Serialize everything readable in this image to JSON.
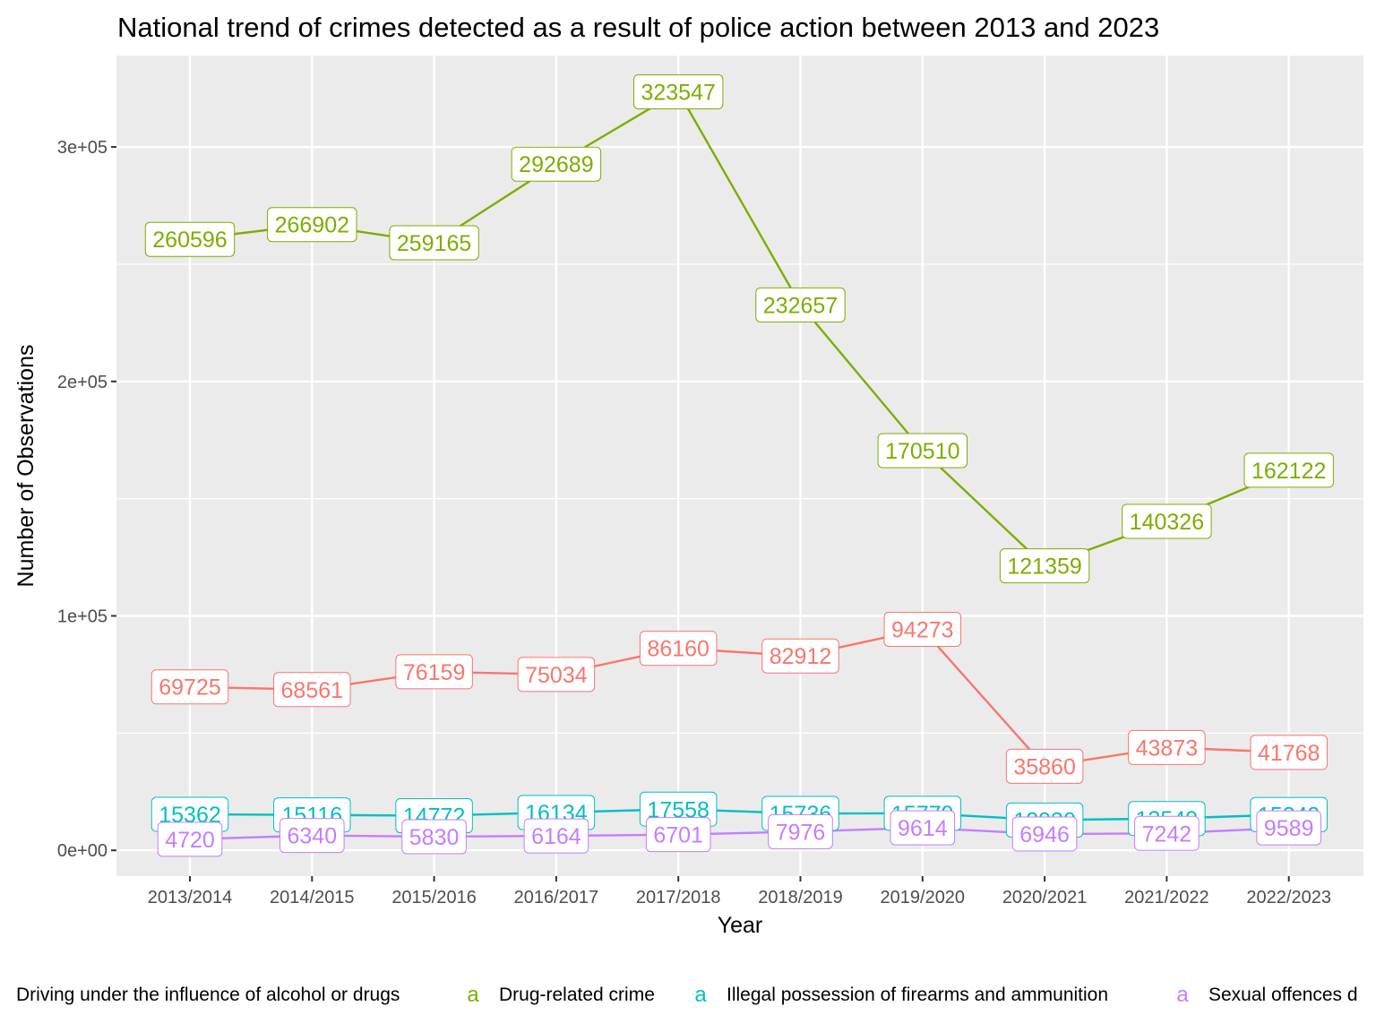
{
  "chart_data": {
    "type": "line",
    "title": "National trend of crimes detected as a result of police action between 2013 and 2023",
    "xlabel": "Year",
    "ylabel": "Number of Observations",
    "categories": [
      "2013/2014",
      "2014/2015",
      "2015/2016",
      "2016/2017",
      "2017/2018",
      "2018/2019",
      "2019/2020",
      "2020/2021",
      "2021/2022",
      "2022/2023"
    ],
    "ylim": [
      -11000,
      339000
    ],
    "y_ticks": [
      0,
      100000,
      200000,
      300000
    ],
    "y_tick_labels": [
      "0e+00",
      "1e+05",
      "2e+05",
      "3e+05"
    ],
    "grid": true,
    "legend_position": "bottom",
    "legend_key_glyph": "a",
    "series": [
      {
        "name": "Driving under the influence of alcohol or drugs",
        "color": "#F8766D",
        "values": [
          69725,
          68561,
          76159,
          75034,
          86160,
          82912,
          94273,
          35860,
          43873,
          41768
        ]
      },
      {
        "name": "Drug-related crime",
        "color": "#7CAE00",
        "values": [
          260596,
          266902,
          259165,
          292689,
          323547,
          232657,
          170510,
          121359,
          140326,
          162122
        ]
      },
      {
        "name": "Illegal possession of firearms and ammunition",
        "color": "#00BFC4",
        "values": [
          15362,
          15116,
          14772,
          16134,
          17558,
          15736,
          15779,
          12930,
          13549,
          15249
        ]
      },
      {
        "name": "Sexual offences detected as a result of police action",
        "color": "#C77CFF",
        "values": [
          4720,
          6340,
          5830,
          6164,
          6701,
          7976,
          9614,
          6946,
          7242,
          9589
        ]
      }
    ],
    "legend_visible_text": [
      "Driving under the influence of alcohol or drugs",
      "Drug-related crime",
      "Illegal possession of firearms and ammunition",
      "Sexual offences d"
    ]
  }
}
